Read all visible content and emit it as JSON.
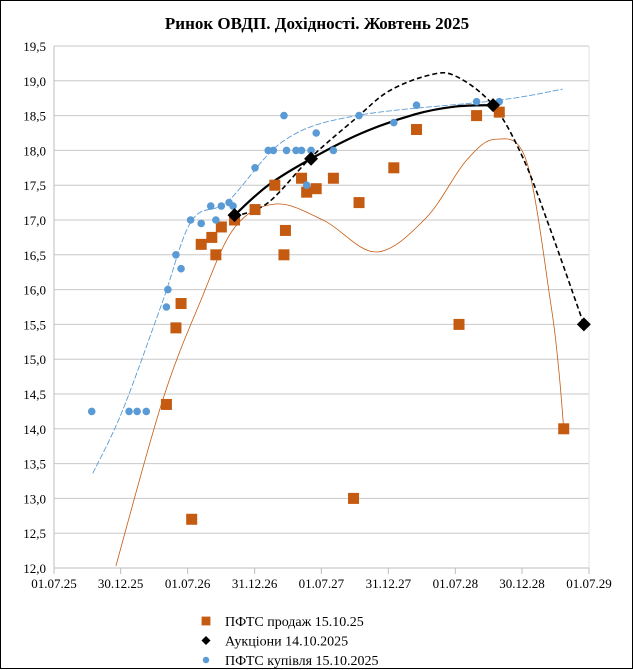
{
  "chart_data": {
    "type": "scatter",
    "title": "Ринок ОВДП. Дохідності.  Жовтень 2025",
    "xlabel": "",
    "ylabel": "",
    "ylim": [
      12.0,
      19.5
    ],
    "yticks": [
      "12,0",
      "12,5",
      "13,0",
      "13,5",
      "14,0",
      "14,5",
      "15,0",
      "15,5",
      "16,0",
      "16,5",
      "17,0",
      "17,5",
      "18,0",
      "18,5",
      "19,0",
      "19,5"
    ],
    "xlim": [
      "2025-07-01",
      "2029-07-01"
    ],
    "xticks": [
      {
        "date": "2025-07-01",
        "label": "01.07.25"
      },
      {
        "date": "2025-12-30",
        "label": "30.12.25"
      },
      {
        "date": "2026-07-01",
        "label": "01.07.26"
      },
      {
        "date": "2026-12-31",
        "label": "31.12.26"
      },
      {
        "date": "2027-07-01",
        "label": "01.07.27"
      },
      {
        "date": "2027-12-31",
        "label": "31.12.27"
      },
      {
        "date": "2028-07-01",
        "label": "01.07.28"
      },
      {
        "date": "2028-12-30",
        "label": "30.12.28"
      },
      {
        "date": "2029-07-01",
        "label": "01.07.29"
      }
    ],
    "grid": "horizontal",
    "legend_placement": "bottom",
    "series": [
      {
        "name": "ПФТС продаж 15.10.25",
        "marker": "square",
        "color": "#C55A11",
        "points": [
          [
            "2026-05-04",
            14.35
          ],
          [
            "2026-05-30",
            15.45
          ],
          [
            "2026-06-13",
            15.8
          ],
          [
            "2026-07-12",
            12.7
          ],
          [
            "2026-08-07",
            16.65
          ],
          [
            "2026-09-05",
            16.75
          ],
          [
            "2026-09-16",
            16.5
          ],
          [
            "2026-10-01",
            16.9
          ],
          [
            "2026-11-06",
            17.0
          ],
          [
            "2027-01-01",
            17.15
          ],
          [
            "2027-02-24",
            17.5
          ],
          [
            "2027-03-21",
            16.5
          ],
          [
            "2027-03-25",
            16.85
          ],
          [
            "2027-05-08",
            17.6
          ],
          [
            "2027-05-22",
            17.4
          ],
          [
            "2027-06-17",
            17.45
          ],
          [
            "2027-08-03",
            17.6
          ],
          [
            "2027-09-27",
            13.0
          ],
          [
            "2027-10-12",
            17.25
          ],
          [
            "2028-01-15",
            17.75
          ],
          [
            "2028-03-17",
            18.3
          ],
          [
            "2028-07-11",
            15.5
          ],
          [
            "2028-08-28",
            18.5
          ],
          [
            "2028-10-29",
            18.55
          ],
          [
            "2029-04-23",
            14.0
          ]
        ],
        "trendline": {
          "style": "thin-solid",
          "color": "#C55A11",
          "points": [
            [
              "2025-12-17",
              12.03
            ],
            [
              "2026-04-23",
              14.4
            ],
            [
              "2026-08-04",
              15.82
            ],
            [
              "2026-11-06",
              16.89
            ],
            [
              "2027-02-27",
              17.23
            ],
            [
              "2027-07-09",
              16.99
            ],
            [
              "2027-11-28",
              16.54
            ],
            [
              "2028-04-12",
              17.03
            ],
            [
              "2028-07-30",
              17.85
            ],
            [
              "2028-10-19",
              18.16
            ],
            [
              "2029-01-11",
              17.85
            ],
            [
              "2029-03-18",
              15.82
            ],
            [
              "2029-04-09",
              14.87
            ],
            [
              "2029-04-23",
              14.0
            ]
          ]
        }
      },
      {
        "name": "Аукціони 14.10.2025",
        "marker": "diamond",
        "color": "#000000",
        "points": [
          [
            "2026-11-06",
            17.07
          ],
          [
            "2027-06-03",
            17.88
          ],
          [
            "2028-10-12",
            18.65
          ],
          [
            "2029-06-17",
            15.5
          ]
        ],
        "trendline": {
          "style": "solid",
          "color": "#000000",
          "points": [
            [
              "2026-11-06",
              17.07
            ],
            [
              "2027-02-06",
              17.5
            ],
            [
              "2027-06-03",
              17.88
            ],
            [
              "2027-10-20",
              18.25
            ],
            [
              "2028-03-14",
              18.52
            ],
            [
              "2028-07-01",
              18.63
            ],
            [
              "2028-10-12",
              18.65
            ]
          ]
        },
        "trendline2": {
          "style": "dashed",
          "color": "#000000",
          "points": [
            [
              "2026-11-06",
              17.05
            ],
            [
              "2027-02-06",
              17.25
            ],
            [
              "2027-06-03",
              17.9
            ],
            [
              "2027-10-01",
              18.45
            ],
            [
              "2028-01-01",
              18.85
            ],
            [
              "2028-04-20",
              19.08
            ],
            [
              "2028-07-01",
              19.07
            ],
            [
              "2028-10-12",
              18.65
            ],
            [
              "2029-01-01",
              17.9
            ],
            [
              "2029-03-15",
              16.9
            ],
            [
              "2029-06-17",
              15.5
            ]
          ]
        }
      },
      {
        "name": "ПФТС купівля 15.10.2025",
        "marker": "circle",
        "color": "#5B9BD5",
        "points": [
          [
            "2025-10-12",
            14.25
          ],
          [
            "2026-01-22",
            14.25
          ],
          [
            "2026-02-13",
            14.25
          ],
          [
            "2026-03-10",
            14.25
          ],
          [
            "2026-05-04",
            15.75
          ],
          [
            "2026-05-08",
            16.0
          ],
          [
            "2026-05-30",
            16.5
          ],
          [
            "2026-06-13",
            16.3
          ],
          [
            "2026-07-09",
            17.0
          ],
          [
            "2026-08-07",
            16.95
          ],
          [
            "2026-09-02",
            17.2
          ],
          [
            "2026-09-16",
            17.0
          ],
          [
            "2026-10-01",
            17.2
          ],
          [
            "2026-10-22",
            17.25
          ],
          [
            "2026-11-02",
            17.2
          ],
          [
            "2027-01-01",
            17.75
          ],
          [
            "2027-02-06",
            18.0
          ],
          [
            "2027-02-20",
            18.0
          ],
          [
            "2027-03-21",
            18.5
          ],
          [
            "2027-03-28",
            18.0
          ],
          [
            "2027-04-23",
            18.0
          ],
          [
            "2027-05-08",
            18.0
          ],
          [
            "2027-05-22",
            17.5
          ],
          [
            "2027-06-03",
            18.0
          ],
          [
            "2027-06-17",
            18.25
          ],
          [
            "2027-08-03",
            18.0
          ],
          [
            "2027-10-12",
            18.5
          ],
          [
            "2028-01-15",
            18.4
          ],
          [
            "2028-03-17",
            18.65
          ],
          [
            "2028-08-28",
            18.7
          ],
          [
            "2028-10-29",
            18.7
          ]
        ],
        "trendline": {
          "style": "thin-dashed",
          "color": "#5B9BD5",
          "points": [
            [
              "2025-10-15",
              13.36
            ],
            [
              "2026-01-04",
              14.26
            ],
            [
              "2026-04-23",
              15.82
            ],
            [
              "2026-07-12",
              16.99
            ],
            [
              "2026-10-19",
              17.27
            ],
            [
              "2027-03-21",
              18.14
            ],
            [
              "2027-10-05",
              18.5
            ],
            [
              "2028-10-26",
              18.72
            ],
            [
              "2029-04-20",
              18.88
            ]
          ]
        }
      }
    ]
  }
}
